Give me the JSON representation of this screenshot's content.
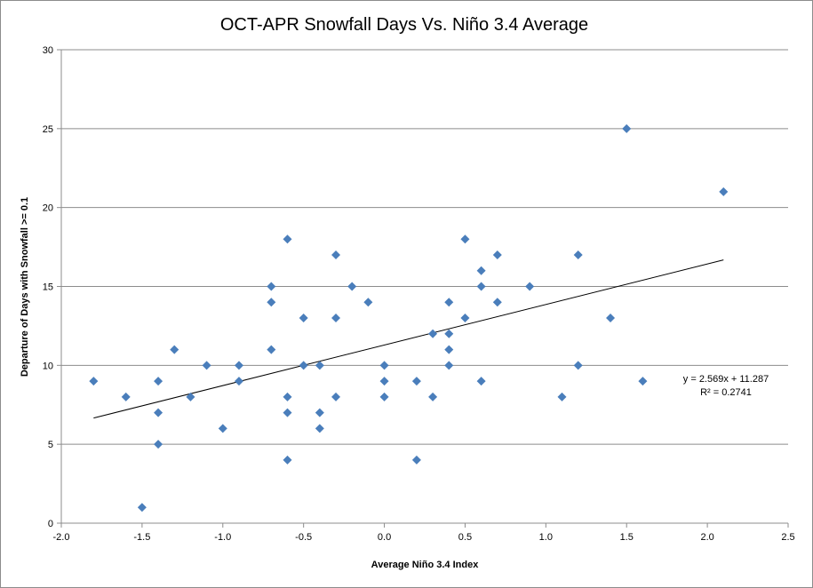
{
  "chart_data": {
    "type": "scatter",
    "title": "OCT-APR Snowfall Days Vs. Niño 3.4 Average",
    "xlabel": "Average Niño 3.4 Index",
    "ylabel": "Departure of Days with Snowfall >= 0.1",
    "xlim": [
      -2.0,
      2.5
    ],
    "ylim": [
      0,
      30
    ],
    "x_ticks": [
      "-2.0",
      "-1.5",
      "-1.0",
      "-0.5",
      "0.0",
      "0.5",
      "1.0",
      "1.5",
      "2.0",
      "2.5"
    ],
    "y_ticks": [
      "0",
      "5",
      "10",
      "15",
      "20",
      "25",
      "30"
    ],
    "grid": "horizontal",
    "marker_color": "#4a7ebb",
    "series": [
      {
        "points": [
          {
            "x": -1.8,
            "y": 9
          },
          {
            "x": -1.6,
            "y": 8
          },
          {
            "x": -1.5,
            "y": 1
          },
          {
            "x": -1.4,
            "y": 9
          },
          {
            "x": -1.4,
            "y": 7
          },
          {
            "x": -1.4,
            "y": 5
          },
          {
            "x": -1.3,
            "y": 11
          },
          {
            "x": -1.2,
            "y": 8
          },
          {
            "x": -1.1,
            "y": 10
          },
          {
            "x": -1.0,
            "y": 6
          },
          {
            "x": -0.9,
            "y": 10
          },
          {
            "x": -0.9,
            "y": 9
          },
          {
            "x": -0.7,
            "y": 15
          },
          {
            "x": -0.7,
            "y": 14
          },
          {
            "x": -0.7,
            "y": 11
          },
          {
            "x": -0.6,
            "y": 18
          },
          {
            "x": -0.6,
            "y": 8
          },
          {
            "x": -0.6,
            "y": 7
          },
          {
            "x": -0.6,
            "y": 4
          },
          {
            "x": -0.5,
            "y": 13
          },
          {
            "x": -0.5,
            "y": 10
          },
          {
            "x": -0.4,
            "y": 10
          },
          {
            "x": -0.4,
            "y": 7
          },
          {
            "x": -0.4,
            "y": 6
          },
          {
            "x": -0.3,
            "y": 17
          },
          {
            "x": -0.3,
            "y": 13
          },
          {
            "x": -0.3,
            "y": 8
          },
          {
            "x": -0.2,
            "y": 15
          },
          {
            "x": -0.1,
            "y": 14
          },
          {
            "x": 0.0,
            "y": 10
          },
          {
            "x": 0.0,
            "y": 9
          },
          {
            "x": 0.0,
            "y": 8
          },
          {
            "x": 0.2,
            "y": 9
          },
          {
            "x": 0.2,
            "y": 4
          },
          {
            "x": 0.3,
            "y": 12
          },
          {
            "x": 0.3,
            "y": 8
          },
          {
            "x": 0.4,
            "y": 14
          },
          {
            "x": 0.4,
            "y": 12
          },
          {
            "x": 0.4,
            "y": 11
          },
          {
            "x": 0.4,
            "y": 10
          },
          {
            "x": 0.5,
            "y": 18
          },
          {
            "x": 0.5,
            "y": 13
          },
          {
            "x": 0.6,
            "y": 16
          },
          {
            "x": 0.6,
            "y": 15
          },
          {
            "x": 0.6,
            "y": 9
          },
          {
            "x": 0.7,
            "y": 17
          },
          {
            "x": 0.7,
            "y": 14
          },
          {
            "x": 0.9,
            "y": 15
          },
          {
            "x": 1.1,
            "y": 8
          },
          {
            "x": 1.2,
            "y": 17
          },
          {
            "x": 1.2,
            "y": 10
          },
          {
            "x": 1.4,
            "y": 13
          },
          {
            "x": 1.5,
            "y": 25
          },
          {
            "x": 1.6,
            "y": 9
          },
          {
            "x": 2.1,
            "y": 21
          }
        ]
      }
    ],
    "trendline": {
      "slope": 2.569,
      "intercept": 11.287,
      "x_range": [
        -1.8,
        2.1
      ],
      "equation": "y = 2.569x + 11.287",
      "r_squared": "R² = 0.2741"
    }
  }
}
